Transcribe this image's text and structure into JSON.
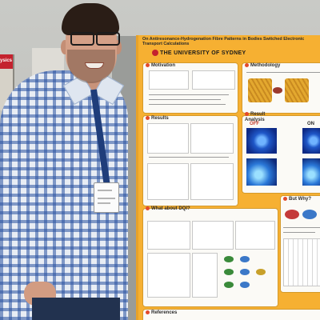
{
  "poster": {
    "title": "On Antiresonance-Hydrogenation Fibre Patterns in Bodies Switched Electronic Transport Calculations",
    "institution": "THE UNIVERSITY OF SYDNEY",
    "sections": {
      "motivation": "Motivation",
      "methodology": "Methodology",
      "results": "Results",
      "result_analysis": "Result Analysis",
      "what_about_dqi": "What about DQI?",
      "but_why": "But Why?",
      "references": "References"
    },
    "off_label": "OFF",
    "on_label": "ON"
  },
  "scene": {
    "left_poster_fragment": "ysics",
    "colors": {
      "poster_orange": "#f6b032",
      "shirt_blue": "#2850a0",
      "lanyard": "#1f3d7a"
    }
  }
}
